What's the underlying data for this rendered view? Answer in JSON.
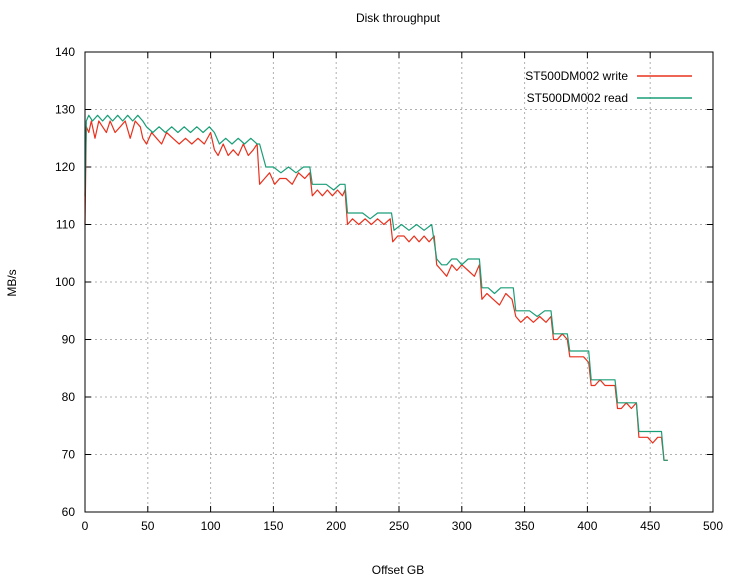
{
  "chart_data": {
    "type": "line",
    "title": "Disk throughput",
    "xlabel": "Offset GB",
    "ylabel": "MB/s",
    "xlim": [
      0,
      500
    ],
    "ylim": [
      60,
      140
    ],
    "xticks": [
      0,
      50,
      100,
      150,
      200,
      250,
      300,
      350,
      400,
      450,
      500
    ],
    "yticks": [
      60,
      70,
      80,
      90,
      100,
      110,
      120,
      130,
      140
    ],
    "grid": true,
    "legend_position": "top-right",
    "series": [
      {
        "name": "ST500DM002 write",
        "color": "#e8321e",
        "x": [
          0,
          1,
          3,
          5,
          8,
          11,
          14,
          17,
          20,
          24,
          28,
          32,
          36,
          40,
          44,
          46,
          49,
          53,
          57,
          61,
          65,
          70,
          75,
          80,
          85,
          90,
          95,
          100,
          103,
          106,
          110,
          114,
          118,
          122,
          126,
          130,
          134,
          137,
          139,
          143,
          147,
          151,
          155,
          160,
          165,
          170,
          175,
          179,
          181,
          185,
          189,
          193,
          197,
          201,
          205,
          207,
          209,
          213,
          218,
          223,
          228,
          233,
          238,
          243,
          245,
          249,
          254,
          258,
          262,
          266,
          270,
          274,
          278,
          280,
          284,
          288,
          292,
          296,
          300,
          305,
          310,
          314,
          316,
          320,
          325,
          330,
          335,
          340,
          343,
          347,
          352,
          357,
          362,
          367,
          371,
          373,
          376,
          380,
          384,
          386,
          389,
          393,
          397,
          401,
          403,
          406,
          410,
          414,
          418,
          422,
          424,
          427,
          431,
          435,
          439,
          441,
          444,
          448,
          452,
          456,
          459,
          461,
          464
        ],
        "y": [
          110,
          127,
          126,
          128,
          125,
          128,
          127,
          126,
          128,
          126,
          127,
          128,
          125,
          128,
          127,
          125,
          124,
          126,
          125,
          124,
          126,
          125,
          124,
          125,
          124,
          125,
          124,
          126,
          123,
          122,
          124,
          122,
          123,
          122,
          124,
          122,
          123,
          124,
          117,
          118,
          119,
          117,
          118,
          118,
          117,
          119,
          118,
          119,
          115,
          116,
          115,
          116,
          115,
          116,
          115,
          116,
          110,
          111,
          110,
          111,
          110,
          111,
          110,
          111,
          107,
          108,
          108,
          107,
          108,
          107,
          108,
          107,
          108,
          103,
          102,
          101,
          103,
          102,
          103,
          102,
          101,
          103,
          97,
          98,
          97,
          96,
          98,
          97,
          94,
          93,
          94,
          93,
          94,
          93,
          94,
          90,
          90,
          91,
          90,
          87,
          87,
          87,
          87,
          86,
          82,
          82,
          83,
          82,
          82,
          82,
          78,
          78,
          79,
          78,
          79,
          73,
          73,
          73,
          72,
          73,
          73,
          69,
          69
        ]
      },
      {
        "name": "ST500DM002 read",
        "color": "#1a9e77",
        "x": [
          0,
          1,
          3,
          6,
          10,
          14,
          18,
          22,
          26,
          30,
          34,
          38,
          42,
          46,
          49,
          54,
          59,
          64,
          69,
          74,
          79,
          84,
          89,
          94,
          99,
          103,
          107,
          112,
          117,
          122,
          127,
          132,
          137,
          139,
          144,
          150,
          156,
          162,
          168,
          174,
          179,
          181,
          186,
          192,
          198,
          203,
          207,
          209,
          215,
          221,
          227,
          233,
          239,
          244,
          246,
          252,
          258,
          264,
          270,
          276,
          280,
          284,
          288,
          292,
          296,
          300,
          305,
          310,
          314,
          316,
          321,
          326,
          331,
          336,
          341,
          343,
          348,
          354,
          360,
          366,
          371,
          373,
          378,
          384,
          386,
          391,
          396,
          401,
          403,
          408,
          413,
          418,
          422,
          424,
          429,
          434,
          439,
          441,
          446,
          451,
          456,
          459,
          461,
          464
        ],
        "y": [
          115,
          128,
          129,
          128,
          129,
          128,
          129,
          128,
          129,
          128,
          129,
          128,
          129,
          128,
          127,
          126,
          127,
          126,
          127,
          126,
          127,
          126,
          127,
          126,
          127,
          126,
          124,
          125,
          124,
          125,
          124,
          125,
          124,
          124,
          120,
          120,
          119,
          120,
          119,
          120,
          120,
          117,
          117,
          117,
          116,
          117,
          117,
          112,
          112,
          112,
          111,
          112,
          112,
          112,
          109,
          110,
          109,
          110,
          109,
          110,
          104,
          103,
          103,
          104,
          104,
          103,
          104,
          104,
          104,
          99,
          99,
          98,
          99,
          99,
          99,
          95,
          95,
          95,
          94,
          95,
          95,
          91,
          91,
          91,
          88,
          88,
          88,
          88,
          83,
          83,
          83,
          83,
          83,
          79,
          79,
          79,
          79,
          74,
          74,
          74,
          74,
          74,
          69,
          69
        ]
      }
    ]
  }
}
